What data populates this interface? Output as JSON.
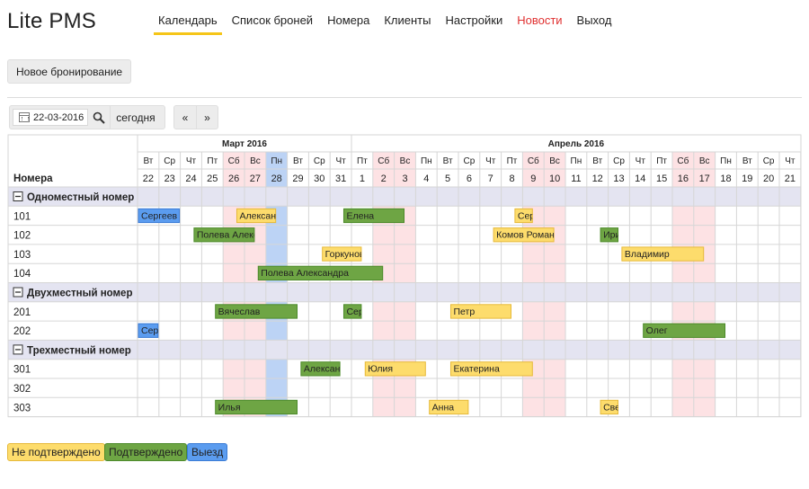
{
  "app": {
    "title": "Lite PMS"
  },
  "nav": [
    {
      "label": "Календарь",
      "active": true
    },
    {
      "label": "Список броней"
    },
    {
      "label": "Номера"
    },
    {
      "label": "Клиенты"
    },
    {
      "label": "Настройки"
    },
    {
      "label": "Новости",
      "highlight": true
    },
    {
      "label": "Выход"
    }
  ],
  "toolbar": {
    "new_booking": "Новое бронирование",
    "date": "22-03-2016",
    "today": "сегодня",
    "prev": "«",
    "next": "»"
  },
  "calendar": {
    "rooms_header": "Номера",
    "months": [
      {
        "label": "Март 2016",
        "span": 10
      },
      {
        "label": "Апрель 2016",
        "span": 21
      }
    ],
    "days": [
      {
        "dow": "Вт",
        "d": "22"
      },
      {
        "dow": "Ср",
        "d": "23"
      },
      {
        "dow": "Чт",
        "d": "24"
      },
      {
        "dow": "Пт",
        "d": "25"
      },
      {
        "dow": "Сб",
        "d": "26",
        "weekend": true
      },
      {
        "dow": "Вс",
        "d": "27",
        "weekend": true
      },
      {
        "dow": "Пн",
        "d": "28",
        "today": true
      },
      {
        "dow": "Вт",
        "d": "29"
      },
      {
        "dow": "Ср",
        "d": "30"
      },
      {
        "dow": "Чт",
        "d": "31"
      },
      {
        "dow": "Пт",
        "d": "1"
      },
      {
        "dow": "Сб",
        "d": "2",
        "weekend": true
      },
      {
        "dow": "Вс",
        "d": "3",
        "weekend": true
      },
      {
        "dow": "Пн",
        "d": "4"
      },
      {
        "dow": "Вт",
        "d": "5"
      },
      {
        "dow": "Ср",
        "d": "6"
      },
      {
        "dow": "Чт",
        "d": "7"
      },
      {
        "dow": "Пт",
        "d": "8"
      },
      {
        "dow": "Сб",
        "d": "9",
        "weekend": true
      },
      {
        "dow": "Вс",
        "d": "10",
        "weekend": true
      },
      {
        "dow": "Пн",
        "d": "11"
      },
      {
        "dow": "Вт",
        "d": "12"
      },
      {
        "dow": "Ср",
        "d": "13"
      },
      {
        "dow": "Чт",
        "d": "14"
      },
      {
        "dow": "Пт",
        "d": "15"
      },
      {
        "dow": "Сб",
        "d": "16",
        "weekend": true
      },
      {
        "dow": "Вс",
        "d": "17",
        "weekend": true
      },
      {
        "dow": "Пн",
        "d": "18"
      },
      {
        "dow": "Вт",
        "d": "19"
      },
      {
        "dow": "Ср",
        "d": "20"
      },
      {
        "dow": "Чт",
        "d": "21"
      }
    ],
    "groups": [
      {
        "name": "Одноместный номер",
        "rooms": [
          {
            "number": "101",
            "bookings": [
              {
                "label": "Сергеев",
                "start": 0,
                "days": 2,
                "status": "checkout"
              },
              {
                "label": "Александ",
                "start": 4.6,
                "days": 1.9,
                "status": "unconfirmed"
              },
              {
                "label": "Елена",
                "start": 9.6,
                "days": 2.9,
                "status": "confirmed"
              },
              {
                "label": "Сер",
                "start": 17.6,
                "days": 0.9,
                "status": "unconfirmed"
              }
            ]
          },
          {
            "number": "102",
            "bookings": [
              {
                "label": "Полева Александра",
                "start": 2.6,
                "days": 2.9,
                "status": "confirmed"
              },
              {
                "label": "Комов Роман",
                "start": 16.6,
                "days": 2.9,
                "status": "unconfirmed"
              },
              {
                "label": "Ири",
                "start": 21.6,
                "days": 0.9,
                "status": "confirmed"
              }
            ]
          },
          {
            "number": "103",
            "bookings": [
              {
                "label": "Горкунов",
                "start": 8.6,
                "days": 1.9,
                "status": "unconfirmed"
              },
              {
                "label": "Владимир",
                "start": 22.6,
                "days": 3.9,
                "status": "unconfirmed"
              }
            ]
          },
          {
            "number": "104",
            "bookings": [
              {
                "label": "Полева Александра",
                "start": 5.6,
                "days": 5.9,
                "status": "confirmed"
              }
            ]
          }
        ]
      },
      {
        "name": "Двухместный номер",
        "rooms": [
          {
            "number": "201",
            "bookings": [
              {
                "label": "Вячеслав",
                "start": 3.6,
                "days": 3.9,
                "status": "confirmed"
              },
              {
                "label": "Сер",
                "start": 9.6,
                "days": 0.9,
                "status": "confirmed"
              },
              {
                "label": "Петр",
                "start": 14.6,
                "days": 2.9,
                "status": "unconfirmed"
              }
            ]
          },
          {
            "number": "202",
            "bookings": [
              {
                "label": "Сер",
                "start": 0,
                "days": 1,
                "status": "checkout"
              },
              {
                "label": "Олег",
                "start": 23.6,
                "days": 3.9,
                "status": "confirmed"
              }
            ]
          }
        ]
      },
      {
        "name": "Трехместный номер",
        "rooms": [
          {
            "number": "301",
            "bookings": [
              {
                "label": "Александ",
                "start": 7.6,
                "days": 1.9,
                "status": "confirmed"
              },
              {
                "label": "Юлия",
                "start": 10.6,
                "days": 2.9,
                "status": "unconfirmed"
              },
              {
                "label": "Екатерина",
                "start": 14.6,
                "days": 3.9,
                "status": "unconfirmed"
              }
            ]
          },
          {
            "number": "302",
            "bookings": []
          },
          {
            "number": "303",
            "bookings": [
              {
                "label": "Илья",
                "start": 3.6,
                "days": 3.9,
                "status": "confirmed"
              },
              {
                "label": "Анна",
                "start": 13.6,
                "days": 1.9,
                "status": "unconfirmed"
              },
              {
                "label": "Све",
                "start": 21.6,
                "days": 0.9,
                "status": "unconfirmed"
              }
            ]
          }
        ]
      }
    ]
  },
  "legend": [
    {
      "label": "Не подтверждено",
      "status": "unconfirmed"
    },
    {
      "label": "Подтверждено",
      "status": "confirmed"
    },
    {
      "label": "Выезд",
      "status": "checkout"
    }
  ],
  "colors": {
    "unconfirmed": "#fddc6c",
    "unconfirmed_border": "#e6b93a",
    "confirmed": "#6ea544",
    "confirmed_border": "#4c8a2a",
    "checkout": "#5b9cef",
    "checkout_border": "#3a7bd5",
    "weekend": "#fde2e4",
    "today": "#bcd3f5",
    "group_row": "#e4e4f1",
    "grid_line": "#d6d6d6"
  }
}
